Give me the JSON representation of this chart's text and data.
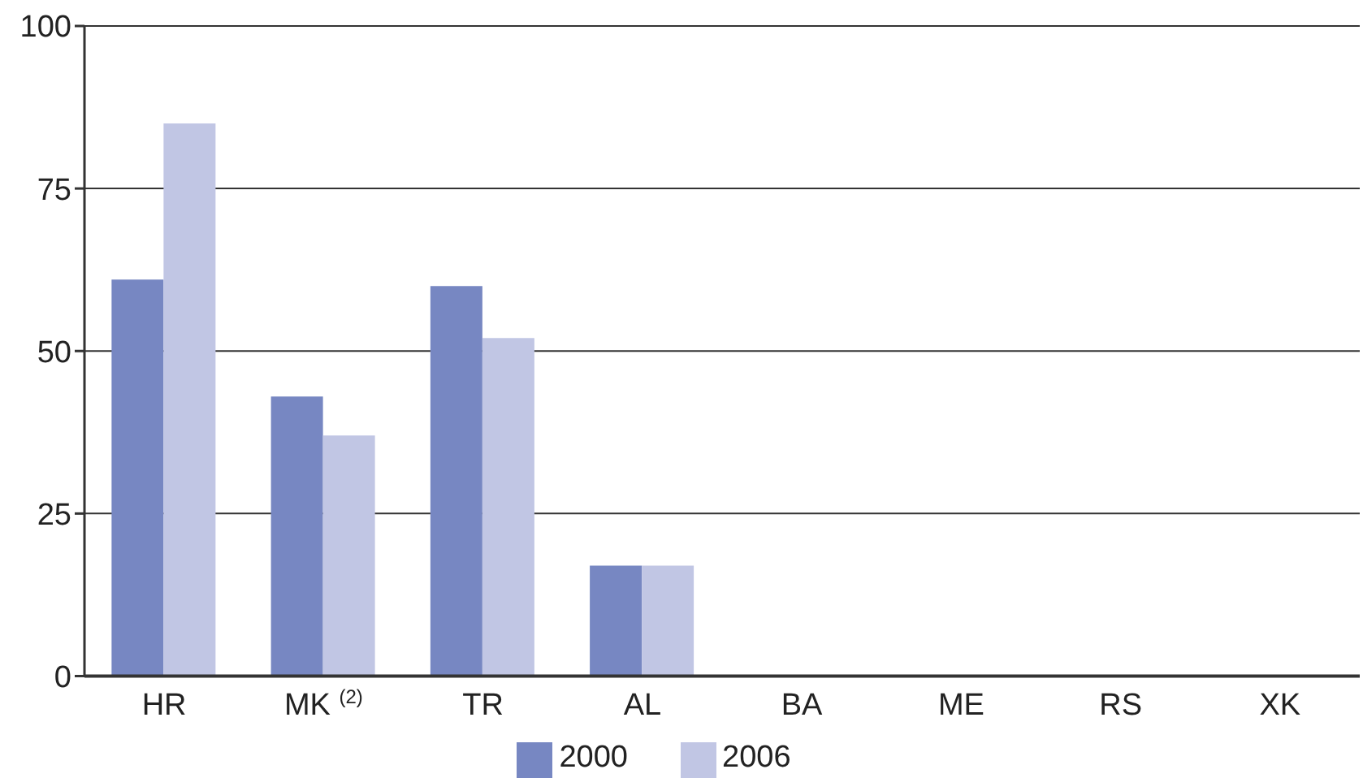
{
  "chart_data": {
    "type": "bar",
    "categories": [
      "HR",
      "MK $^{(2)}$",
      "TR",
      "AL",
      "BA",
      "ME",
      "RS",
      "XK"
    ],
    "series": [
      {
        "name": "2000",
        "color": "#7787c2",
        "values": [
          61,
          43,
          60,
          17,
          null,
          null,
          null,
          null
        ]
      },
      {
        "name": "2006",
        "color": "#c1c6e4",
        "values": [
          85,
          37,
          52,
          17,
          null,
          null,
          null,
          null
        ]
      }
    ],
    "ylim": [
      0,
      100
    ],
    "yticks": [
      0,
      25,
      50,
      75,
      100
    ],
    "grid": "y",
    "legend": "bottom"
  }
}
